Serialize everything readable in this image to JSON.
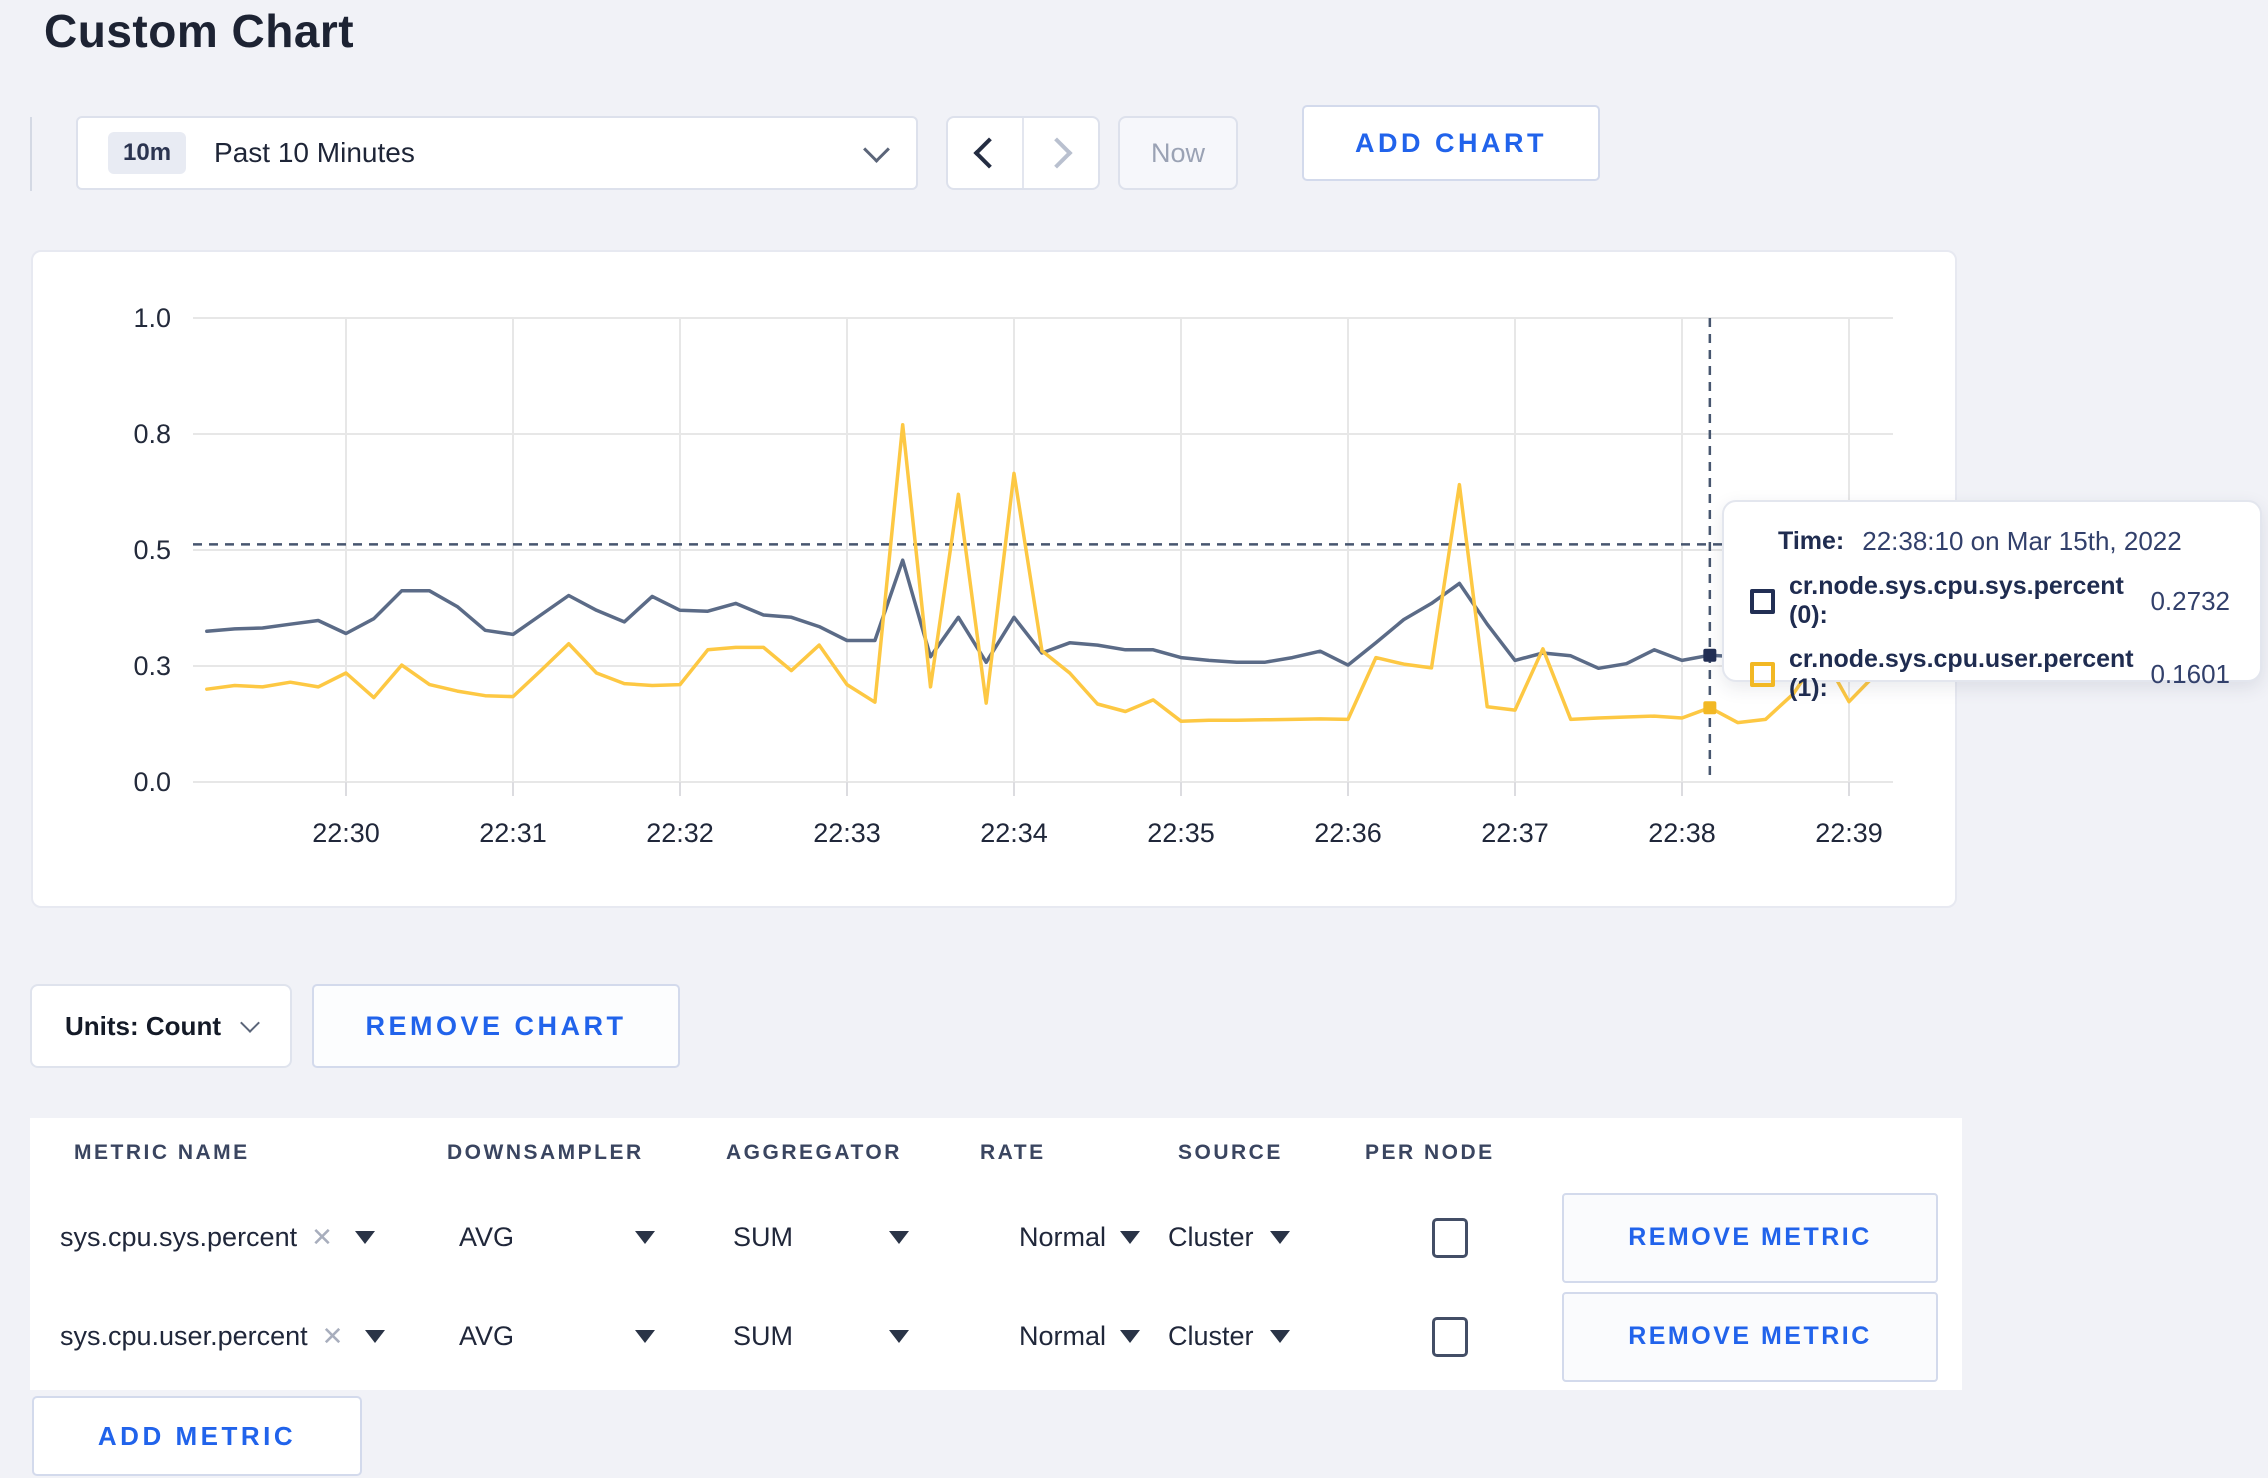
{
  "page": {
    "title": "Custom Chart"
  },
  "toolbar": {
    "range_badge": "10m",
    "range_label": "Past 10 Minutes",
    "now_label": "Now",
    "add_chart_label": "ADD CHART"
  },
  "chart": {
    "footer": {
      "units_label": "Units: Count",
      "remove_chart_label": "REMOVE CHART"
    },
    "tooltip": {
      "time_label": "Time:",
      "time_value": "22:38:10 on Mar 15th, 2022",
      "rows": [
        {
          "label": "cr.node.sys.cpu.sys.percent (0):",
          "value": "0.2732",
          "swatch": "#222f54"
        },
        {
          "label": "cr.node.sys.cpu.user.percent (1):",
          "value": "0.1601",
          "swatch": "#f2b824"
        }
      ]
    }
  },
  "chart_data": {
    "type": "line",
    "title": "",
    "xlabel": "",
    "ylabel": "",
    "grid": true,
    "legend_position": "tooltip",
    "x_axis": {
      "unit": "time",
      "ticks": [
        {
          "m": 1,
          "label": "22:30"
        },
        {
          "m": 2,
          "label": "22:31"
        },
        {
          "m": 3,
          "label": "22:32"
        },
        {
          "m": 4,
          "label": "22:33"
        },
        {
          "m": 5,
          "label": "22:34"
        },
        {
          "m": 6,
          "label": "22:35"
        },
        {
          "m": 7,
          "label": "22:36"
        },
        {
          "m": 8,
          "label": "22:37"
        },
        {
          "m": 9,
          "label": "22:38"
        },
        {
          "m": 10,
          "label": "22:39"
        }
      ]
    },
    "y_axis": {
      "range": [
        0,
        1
      ],
      "ticks": [
        {
          "v": 0,
          "label": "0.0"
        },
        {
          "v": 0.25,
          "label": "0.3"
        },
        {
          "v": 0.5,
          "label": "0.5"
        },
        {
          "v": 0.75,
          "label": "0.8"
        },
        {
          "v": 1,
          "label": "1.0"
        }
      ]
    },
    "crosshair": {
      "x_minutes": 9.1667,
      "y_value": 0.512,
      "time": "22:38:10"
    },
    "start_minutes": 0.1667,
    "interval_minutes": 0.16667,
    "series": [
      {
        "name": "cr.node.sys.cpu.sys.percent",
        "color": "#5b6b87",
        "swatch": "#222f54",
        "marker_value": 0.2732,
        "values": [
          0.325,
          0.33,
          0.332,
          0.34,
          0.348,
          0.32,
          0.352,
          0.412,
          0.412,
          0.378,
          0.327,
          0.318,
          0.36,
          0.402,
          0.37,
          0.345,
          0.4,
          0.37,
          0.368,
          0.385,
          0.36,
          0.355,
          0.335,
          0.305,
          0.305,
          0.478,
          0.27,
          0.355,
          0.258,
          0.355,
          0.278,
          0.3,
          0.295,
          0.285,
          0.285,
          0.268,
          0.262,
          0.258,
          0.258,
          0.268,
          0.282,
          0.252,
          0.3,
          0.35,
          0.385,
          0.428,
          0.34,
          0.262,
          0.278,
          0.272,
          0.245,
          0.255,
          0.285,
          0.262,
          0.2732,
          0.27,
          0.28,
          0.275,
          0.27,
          0.285,
          0.295,
          0.3
        ]
      },
      {
        "name": "cr.node.sys.cpu.user.percent",
        "color": "#fdc843",
        "swatch": "#f2b824",
        "marker_value": 0.1601,
        "values": [
          0.2,
          0.208,
          0.205,
          0.215,
          0.205,
          0.235,
          0.182,
          0.252,
          0.21,
          0.196,
          0.186,
          0.184,
          0.24,
          0.298,
          0.235,
          0.212,
          0.208,
          0.21,
          0.285,
          0.29,
          0.29,
          0.24,
          0.295,
          0.21,
          0.172,
          0.77,
          0.205,
          0.62,
          0.17,
          0.665,
          0.283,
          0.235,
          0.168,
          0.152,
          0.177,
          0.131,
          0.133,
          0.133,
          0.134,
          0.135,
          0.136,
          0.135,
          0.268,
          0.254,
          0.246,
          0.641,
          0.162,
          0.155,
          0.287,
          0.135,
          0.138,
          0.14,
          0.142,
          0.138,
          0.1601,
          0.128,
          0.135,
          0.19,
          0.28,
          0.173,
          0.235,
          0.25
        ]
      }
    ]
  },
  "metrics_table": {
    "headers": [
      "METRIC NAME",
      "DOWNSAMPLER",
      "AGGREGATOR",
      "RATE",
      "SOURCE",
      "PER NODE"
    ],
    "rows": [
      {
        "name": "sys.cpu.sys.percent",
        "downsampler": "AVG",
        "aggregator": "SUM",
        "rate": "Normal",
        "source": "Cluster",
        "per_node": false,
        "remove_label": "REMOVE METRIC"
      },
      {
        "name": "sys.cpu.user.percent",
        "downsampler": "AVG",
        "aggregator": "SUM",
        "rate": "Normal",
        "source": "Cluster",
        "per_node": false,
        "remove_label": "REMOVE METRIC"
      }
    ],
    "add_metric_label": "ADD METRIC"
  }
}
